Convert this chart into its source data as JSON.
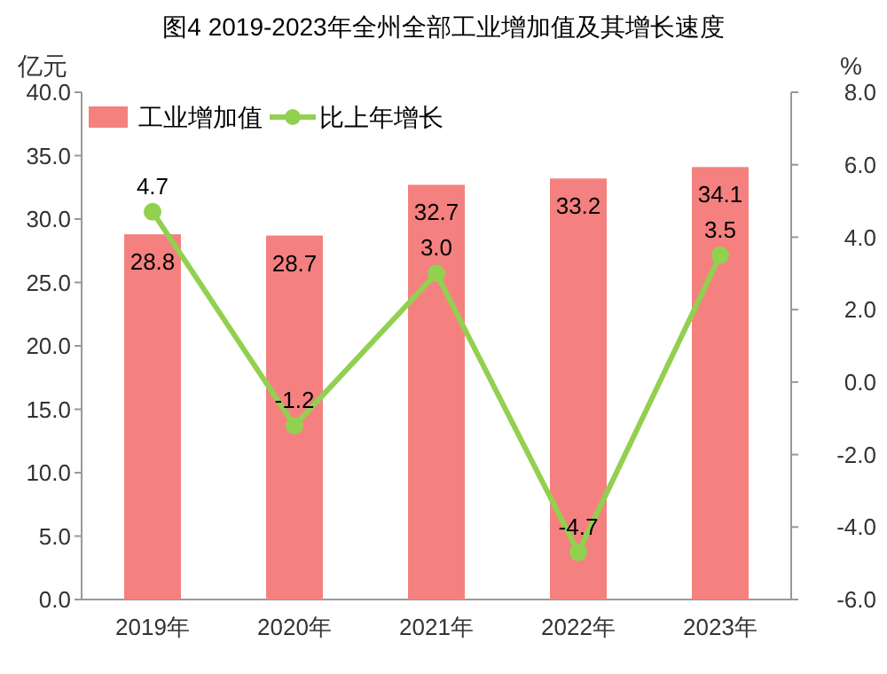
{
  "chart_data": {
    "type": "bar",
    "title": "图4  2019-2023年全州全部工业增加值及其增长速度",
    "ylabel": "亿元",
    "y2label": "%",
    "categories": [
      "2019年",
      "2020年",
      "2021年",
      "2022年",
      "2023年"
    ],
    "series": [
      {
        "name": "工业增加值",
        "color": "#f4817f",
        "values": [
          28.8,
          28.7,
          32.7,
          33.2,
          34.1
        ],
        "value_labels": [
          "28.8",
          "28.7",
          "32.7",
          "33.2",
          "34.1"
        ]
      },
      {
        "name": "比上年增长",
        "type": "line",
        "axis": "y2",
        "color": "#92d050",
        "marker": "circle",
        "values": [
          4.7,
          -1.2,
          3.0,
          -4.7,
          3.5
        ],
        "value_labels": [
          "4.7",
          "-1.2",
          "3.0",
          "-4.7",
          "3.5"
        ]
      }
    ],
    "ylim": [
      0,
      40
    ],
    "yticks": [
      {
        "value": 0,
        "label": "0.0"
      },
      {
        "value": 5,
        "label": "5.0"
      },
      {
        "value": 10,
        "label": "10.0"
      },
      {
        "value": 15,
        "label": "15.0"
      },
      {
        "value": 20,
        "label": "20.0"
      },
      {
        "value": 25,
        "label": "25.0"
      },
      {
        "value": 30,
        "label": "30.0"
      },
      {
        "value": 35,
        "label": "35.0"
      },
      {
        "value": 40,
        "label": "40.0"
      }
    ],
    "y2lim": [
      -6,
      8
    ],
    "y2ticks": [
      {
        "value": -6,
        "label": "-6.0"
      },
      {
        "value": -4,
        "label": "-4.0"
      },
      {
        "value": -2,
        "label": "-2.0"
      },
      {
        "value": 0,
        "label": "0.0"
      },
      {
        "value": 2,
        "label": "2.0"
      },
      {
        "value": 4,
        "label": "4.0"
      },
      {
        "value": 6,
        "label": "6.0"
      },
      {
        "value": 8,
        "label": "8.0"
      }
    ],
    "legend": "top left",
    "grid": false
  }
}
